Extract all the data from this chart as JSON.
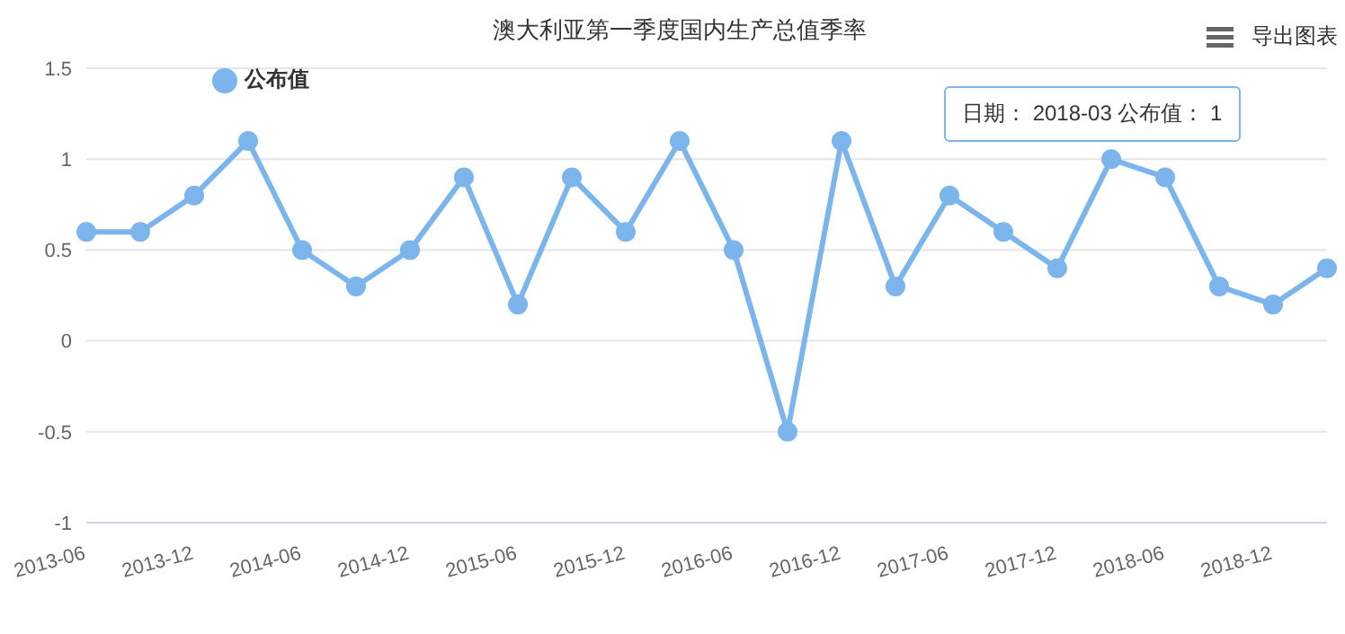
{
  "chart_data": {
    "type": "line",
    "title": "澳大利亚第一季度国内生产总值季率",
    "categories": [
      "2013-06",
      null,
      "2013-12",
      null,
      "2014-06",
      null,
      "2014-12",
      null,
      "2015-06",
      null,
      "2015-12",
      null,
      "2016-06",
      null,
      "2016-12",
      null,
      "2017-06",
      null,
      "2017-12",
      null,
      "2018-06",
      null,
      "2018-12",
      null
    ],
    "series": [
      {
        "name": "公布值",
        "color": "#7cb5ec",
        "values": [
          0.6,
          0.6,
          0.8,
          1.1,
          0.5,
          0.3,
          0.5,
          0.9,
          0.2,
          0.9,
          0.6,
          1.1,
          0.5,
          -0.5,
          1.1,
          0.3,
          0.8,
          0.6,
          0.4,
          1.0,
          0.9,
          0.3,
          0.2,
          0.4
        ]
      }
    ],
    "ylim": [
      -1,
      1.5
    ],
    "yticks": [
      -1,
      -0.5,
      0,
      0.5,
      1,
      1.5
    ],
    "grid": "y",
    "legend": "top left",
    "marker": "circle",
    "line_style": "solid",
    "annotations": [
      "日期： 2018-03 公布值： 1",
      "导出图表"
    ]
  }
}
